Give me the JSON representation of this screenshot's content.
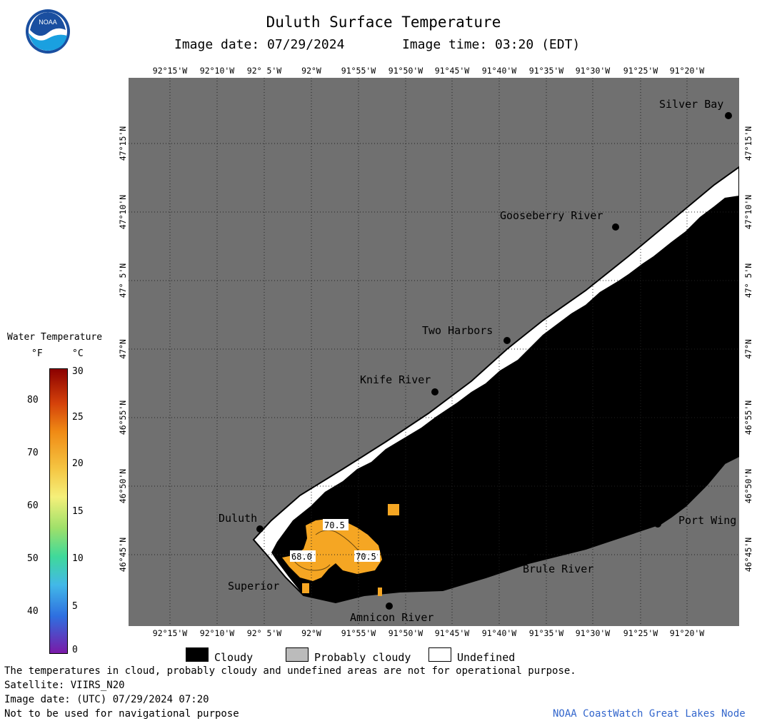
{
  "header": {
    "title": "Duluth Surface Temperature",
    "image_date": "Image date: 07/29/2024",
    "image_time": "Image time: 03:20 (EDT)",
    "logo_text": "NOAA"
  },
  "longitudes": [
    "92°15'W",
    "92°10'W",
    "92° 5'W",
    "92°W",
    "91°55'W",
    "91°50'W",
    "91°45'W",
    "91°40'W",
    "91°35'W",
    "91°30'W",
    "91°25'W",
    "91°20'W"
  ],
  "latitudes": [
    "47°15'N",
    "47°10'N",
    "47° 5'N",
    "47°N",
    "46°55'N",
    "46°50'N",
    "46°45'N"
  ],
  "places": {
    "silver_bay": "Silver Bay",
    "gooseberry_river": "Gooseberry River",
    "two_harbors": "Two Harbors",
    "knife_river": "Knife River",
    "duluth": "Duluth",
    "superior": "Superior",
    "amnicon_river": "Amnicon River",
    "brule_river": "Brule River",
    "port_wing": "Port Wing"
  },
  "contour_labels": {
    "a": "70.5",
    "b": "68.0",
    "c": "70.5"
  },
  "color_scale": {
    "title": "Water Temperature",
    "unit_f": "°F",
    "unit_c": "°C",
    "f_ticks": [
      "80",
      "70",
      "60",
      "50",
      "40"
    ],
    "c_ticks": [
      "30",
      "25",
      "20",
      "15",
      "10",
      "5",
      "0"
    ]
  },
  "legend": {
    "cloudy": "Cloudy",
    "probably_cloudy": "Probably cloudy",
    "undefined": "Undefined"
  },
  "footer": {
    "disclaimer": "The temperatures in cloud, probably cloudy and undefined areas are not for operational purpose.",
    "satellite": "Satellite: VIIRS_N20",
    "utc_date": "Image date: (UTC) 07/29/2024  07:20",
    "nav_warning": "Not to be used for navigational purpose",
    "credit": "NOAA CoastWatch Great Lakes Node"
  },
  "colors": {
    "land": "#707070",
    "cloudy": "#000000",
    "undefined": "#ffffff",
    "probably_cloudy": "#bbbbbb",
    "warm_water": "#f5a623",
    "credit": "#3366cc"
  }
}
